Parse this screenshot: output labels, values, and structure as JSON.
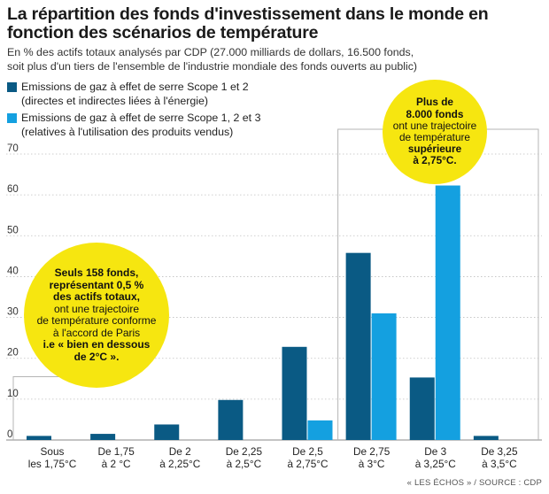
{
  "header": {
    "title": "La répartition des fonds d'investissement dans le monde en fonction des scénarios de température",
    "subtitle_line1": "En % des actifs totaux analysés par CDP (27.000 milliards de dollars, 16.500 fonds,",
    "subtitle_line2": "soit plus d'un tiers de l'ensemble de l'industrie mondiale des fonds ouverts au public)"
  },
  "legend": [
    {
      "line1": "Emissions de gaz à effet de serre Scope 1 et 2",
      "line2": "(directes et indirectes liées à l'énergie)",
      "color": "#0a5a84"
    },
    {
      "line1": "Emissions de gaz à effet de serre Scope 1, 2 et 3",
      "line2": "(relatives à l'utilisation des produits vendus)",
      "color": "#14a0e0"
    }
  ],
  "callouts": {
    "left": {
      "bold1": "Seuls 158 fonds,",
      "bold2": "représentant 0,5 %",
      "bold3": "des actifs totaux,",
      "text1": "ont une trajectoire",
      "text2": "de température conforme",
      "text3": "à l'accord de Paris",
      "bold4": "i.e « bien en dessous",
      "bold5": "de 2°C »."
    },
    "right": {
      "bold1": "Plus de",
      "bold2": "8.000 fonds",
      "text1": "ont une trajectoire",
      "text2": "de température",
      "bold3": "supérieure",
      "bold4": "à 2,75°C."
    }
  },
  "source": "« LES ÉCHOS » / SOURCE : CDP",
  "chart_data": {
    "type": "bar",
    "categories": [
      [
        "Sous",
        "les 1,75°C"
      ],
      [
        "De 1,75",
        "à 2 °C"
      ],
      [
        "De 2",
        "à 2,25°C"
      ],
      [
        "De 2,25",
        "à 2,5°C"
      ],
      [
        "De 2,5",
        "à 2,75°C"
      ],
      [
        "De 2,75",
        "à 3°C"
      ],
      [
        "De 3",
        "à 3,25°C"
      ],
      [
        "De 3,25",
        "à 3,5°C"
      ]
    ],
    "series": [
      {
        "name": "Emissions de gaz à effet de serre Scope 1 et 2",
        "values": [
          1,
          1.5,
          3.8,
          9.8,
          22.8,
          45.8,
          15.3,
          1
        ],
        "color": "#0a5a84"
      },
      {
        "name": "Emissions de gaz à effet de serre Scope 1, 2 et 3",
        "values": [
          0,
          0,
          0,
          0,
          4.8,
          31,
          62.3,
          0
        ],
        "color": "#14a0e0"
      }
    ],
    "yticks": [
      0,
      10,
      20,
      30,
      40,
      50,
      60,
      70
    ],
    "ylim": [
      0,
      70
    ],
    "grid": true
  }
}
